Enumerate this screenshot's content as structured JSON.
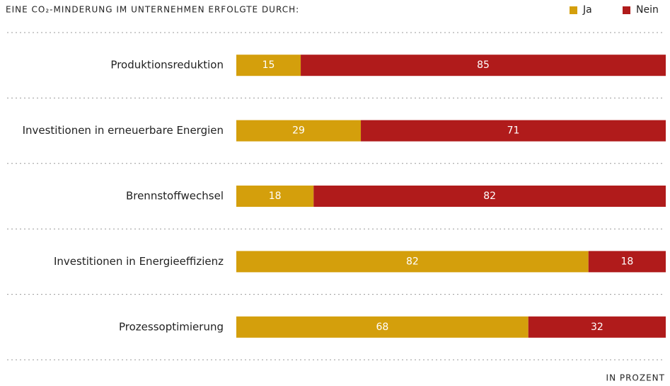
{
  "chart_data": {
    "type": "stacked_barh",
    "title": "EINE CO₂-MINDERUNG IM UNTERNEHMEN ERFOLGTE DURCH:",
    "categories": [
      "Produktionsreduktion",
      "Investitionen in erneuerbare Energien",
      "Brennstoffwechsel",
      "Investitionen in Energieeffizienz",
      "Prozessoptimierung"
    ],
    "series": [
      {
        "name": "Ja",
        "color": "#d49f0c",
        "values": [
          15,
          29,
          18,
          82,
          68
        ]
      },
      {
        "name": "Nein",
        "color": "#b01b1b",
        "values": [
          85,
          71,
          82,
          18,
          32
        ]
      }
    ],
    "xlim": [
      0,
      100
    ],
    "unit_label": "IN PROZENT",
    "legend": "top-right"
  }
}
